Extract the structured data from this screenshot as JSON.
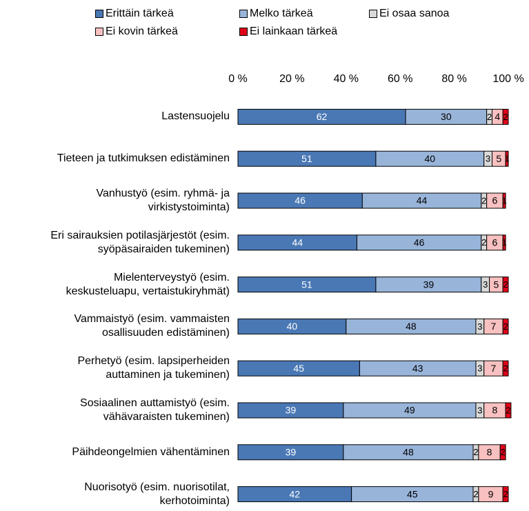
{
  "chart_data": {
    "type": "stacked_bar_horizontal",
    "categories": [
      "Lastensuojelu",
      "Tieteen ja tutkimuksen edistäminen",
      "Vanhustyö (esim. ryhmä- ja\nvirkistystoiminta)",
      "Eri sairauksien potilasjärjestöt (esim.\nsyöpäsairaiden tukeminen)",
      "Mielenterveystyö (esim.\nkeskusteluapu, vertaistukiryhmät)",
      "Vammaistyö (esim. vammaisten\nosallisuuden edistäminen)",
      "Perhetyö (esim. lapsiperheiden\nauttaminen ja tukeminen)",
      "Sosiaalinen auttamistyö (esim.\nvähävaraisten tukeminen)",
      "Päihdeongelmien vähentäminen",
      "Nuorisotyö (esim. nuorisotilat,\nkerhotoiminta)"
    ],
    "series": [
      {
        "name": "Erittäin tärkeä",
        "color": "#4a78b5",
        "values": [
          62,
          51,
          46,
          44,
          51,
          40,
          45,
          39,
          39,
          42
        ]
      },
      {
        "name": "Melko tärkeä",
        "color": "#98b4d9",
        "values": [
          30,
          40,
          44,
          46,
          39,
          48,
          43,
          49,
          48,
          45
        ]
      },
      {
        "name": "Ei osaa sanoa",
        "color": "#d9d9d9",
        "values": [
          2,
          3,
          2,
          2,
          3,
          3,
          3,
          3,
          2,
          2
        ]
      },
      {
        "name": "Ei kovin tärkeä",
        "color": "#f8c0c0",
        "values": [
          4,
          5,
          6,
          6,
          5,
          7,
          7,
          8,
          8,
          9
        ]
      },
      {
        "name": "Ei lainkaan tärkeä",
        "color": "#e0001a",
        "values": [
          2,
          1,
          1,
          1,
          2,
          2,
          2,
          2,
          2,
          2
        ]
      }
    ],
    "xlim": [
      0,
      100
    ],
    "xticks": [
      {
        "value": 0,
        "label": "0 %"
      },
      {
        "value": 20,
        "label": "20 %"
      },
      {
        "value": 40,
        "label": "40 %"
      },
      {
        "value": 60,
        "label": "60 %"
      },
      {
        "value": 80,
        "label": "80 %"
      },
      {
        "value": 100,
        "label": "100 %"
      }
    ],
    "legend": "top"
  }
}
